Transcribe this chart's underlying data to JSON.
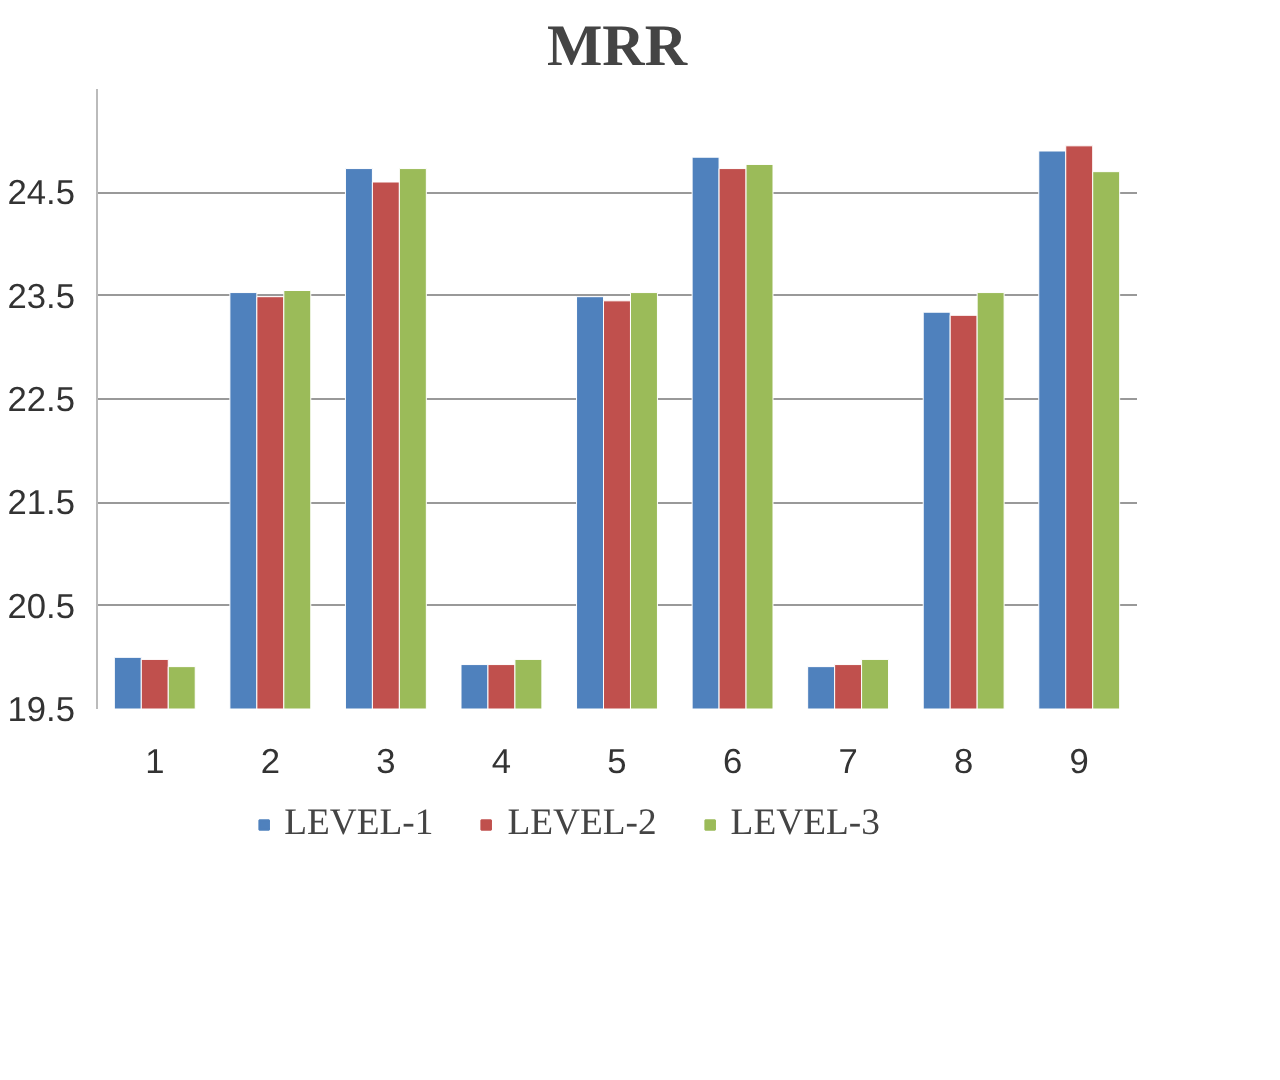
{
  "chart_data": {
    "type": "bar",
    "title": "MRR",
    "categories": [
      "1",
      "2",
      "3",
      "4",
      "5",
      "6",
      "7",
      "8",
      "9"
    ],
    "series": [
      {
        "name": "LEVEL-1",
        "color": "#4f81bd",
        "values": [
          20.0,
          23.53,
          24.73,
          19.93,
          23.49,
          24.84,
          19.91,
          23.34,
          24.9
        ]
      },
      {
        "name": "LEVEL-2",
        "color": "#c0504d",
        "values": [
          19.98,
          23.49,
          24.6,
          19.93,
          23.45,
          24.73,
          19.93,
          23.31,
          24.95
        ]
      },
      {
        "name": "LEVEL-3",
        "color": "#9bbb59",
        "values": [
          19.91,
          23.55,
          24.73,
          19.98,
          23.53,
          24.77,
          19.98,
          23.53,
          24.7
        ]
      }
    ],
    "ylim": [
      19.5,
      25.5
    ],
    "yticks": [
      19.5,
      20.5,
      21.5,
      22.5,
      23.5,
      24.5
    ],
    "grid": "y",
    "legend": "bottom"
  }
}
